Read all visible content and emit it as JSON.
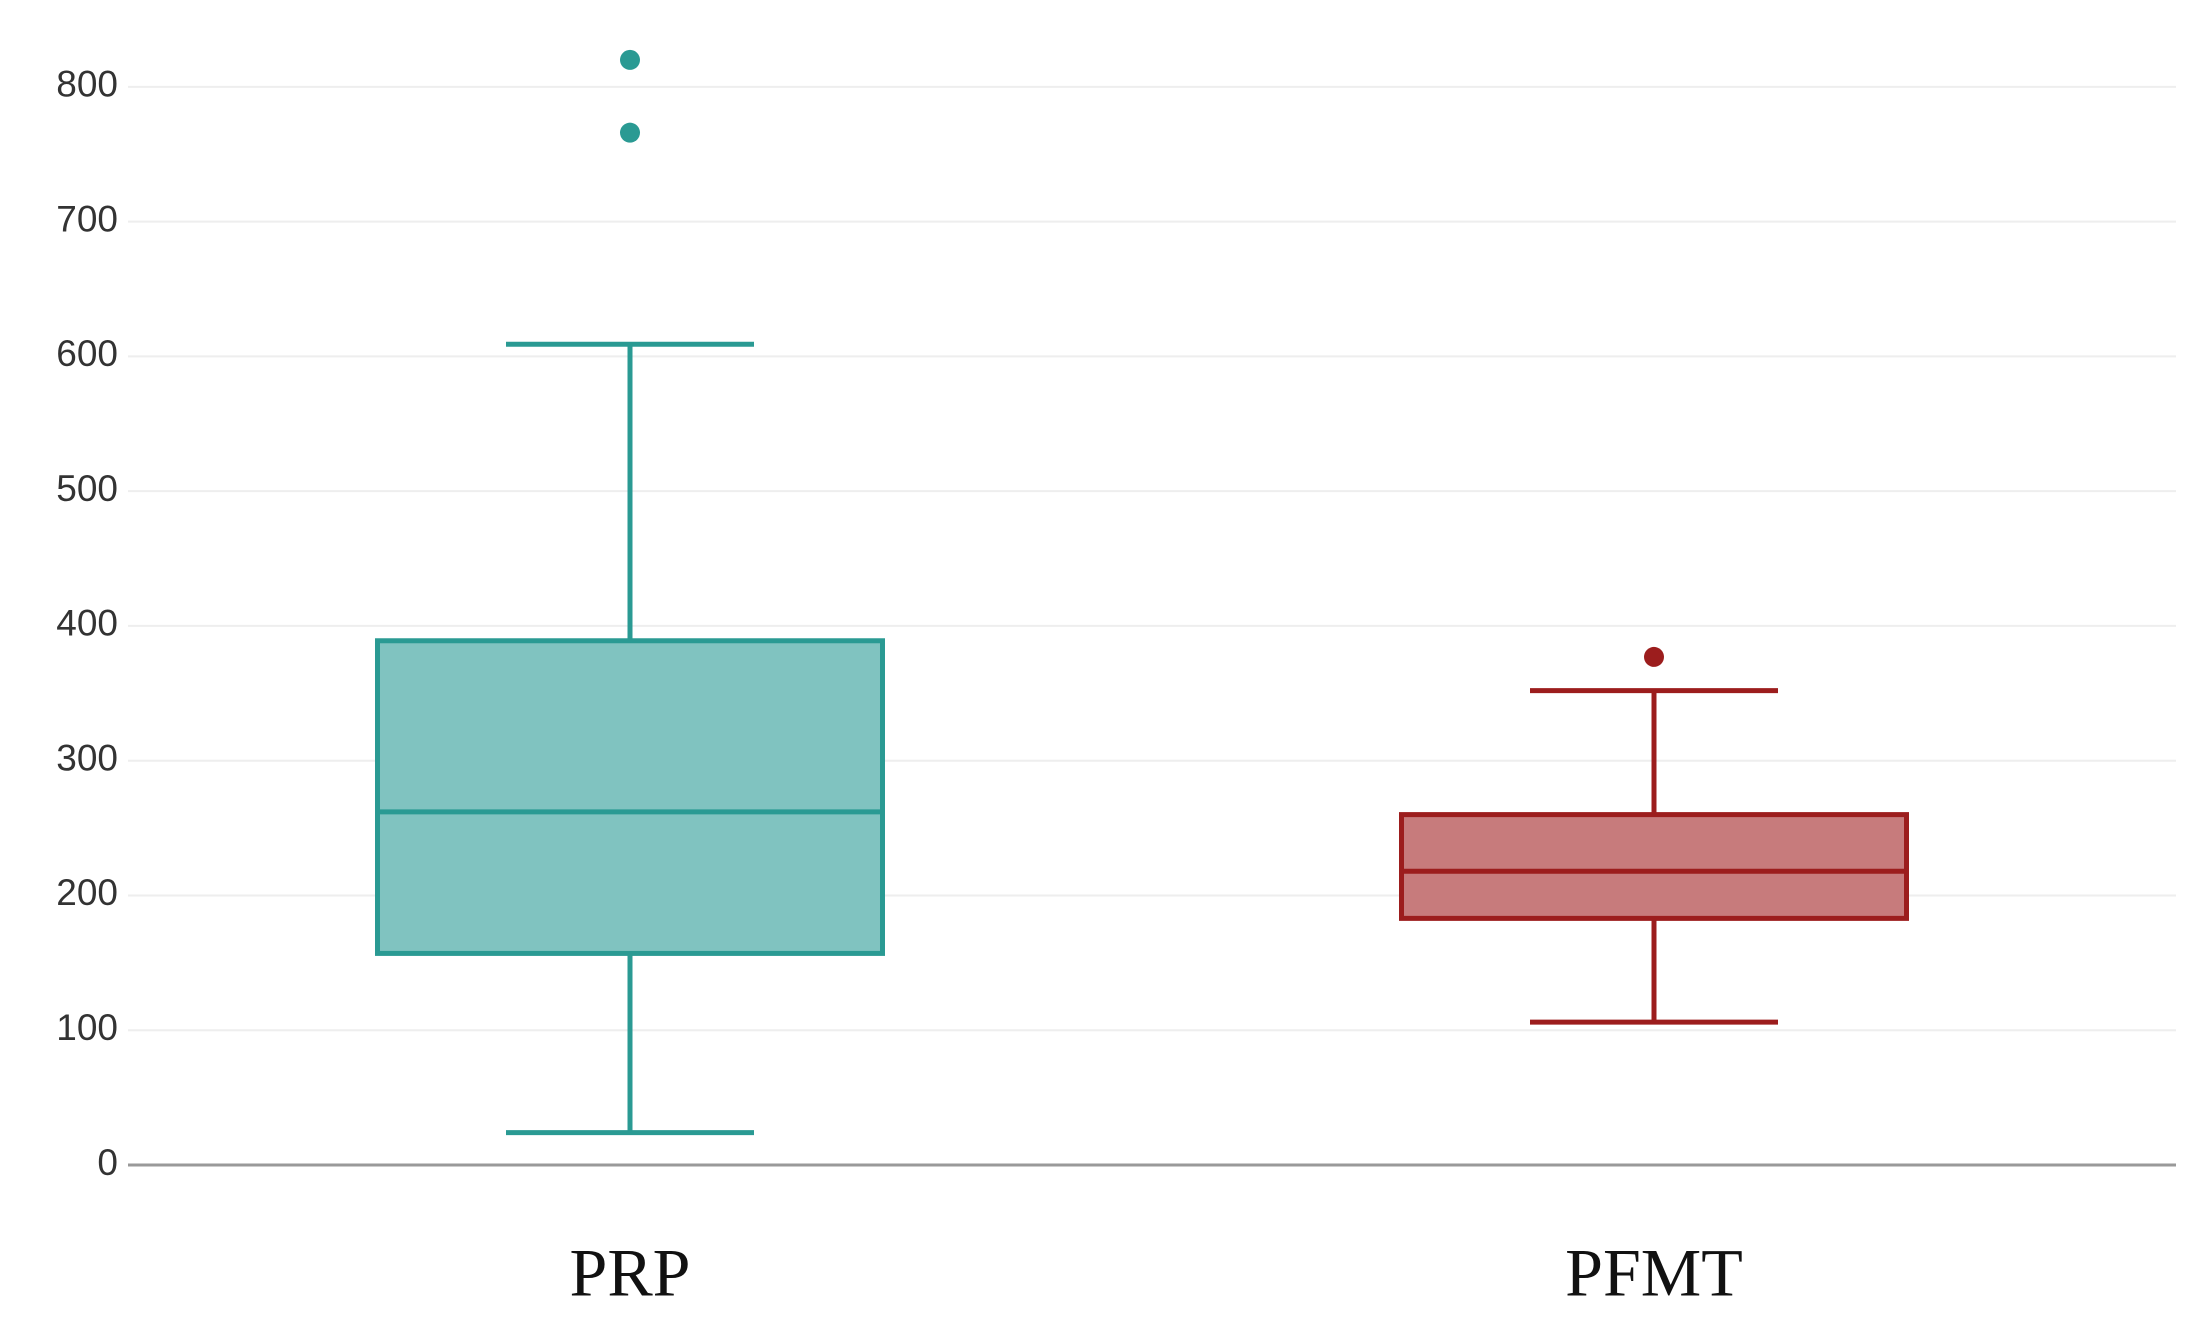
{
  "chart_data": {
    "type": "box",
    "categories": [
      "PRP",
      "PFMT"
    ],
    "boxes": [
      {
        "min": 24,
        "q1": 157,
        "median": 262,
        "q3": 389,
        "max": 609,
        "outliers": [
          820,
          766
        ],
        "color": "#2a9a93",
        "fill": "#80c3c0"
      },
      {
        "min": 106,
        "q1": 183,
        "median": 218,
        "q3": 260,
        "max": 352,
        "outliers": [
          377
        ],
        "color": "#9c1d1d",
        "fill": "#c77b7c"
      }
    ],
    "ylim": [
      0,
      860
    ],
    "yticks": [
      0,
      100,
      200,
      300,
      400,
      500,
      600,
      700,
      800
    ],
    "grid": true
  }
}
